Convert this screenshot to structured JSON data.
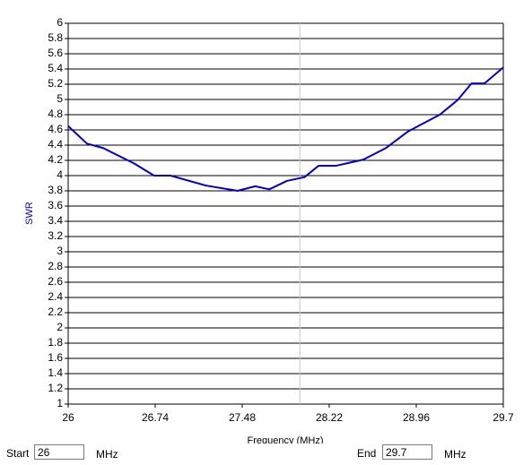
{
  "chart_data": {
    "type": "line",
    "y_label": "SWR",
    "x_label": "Frequency (MHz)",
    "x": [
      26,
      26.16,
      26.3,
      26.56,
      26.73,
      26.87,
      27.17,
      27.44,
      27.59,
      27.71,
      27.86,
      28.01,
      28.13,
      28.28,
      28.51,
      28.7,
      28.89,
      29.16,
      29.31,
      29.43,
      29.54,
      29.7
    ],
    "series": [
      {
        "name": "SWR",
        "color": "#0000cc",
        "values": [
          4.65,
          4.42,
          4.36,
          4.16,
          4.0,
          4.0,
          3.87,
          3.8,
          3.86,
          3.82,
          3.93,
          3.98,
          4.13,
          4.13,
          4.21,
          4.36,
          4.58,
          4.8,
          4.99,
          5.21,
          5.21,
          5.42
        ]
      }
    ],
    "xlim": [
      26,
      29.7
    ],
    "xticks": [
      26,
      26.74,
      27.48,
      28.22,
      28.96,
      29.7
    ],
    "ylim": [
      1,
      6
    ],
    "yticks": [
      1,
      1.2,
      1.4,
      1.6,
      1.8,
      2,
      2.2,
      2.4,
      2.6,
      2.8,
      3,
      3.2,
      3.4,
      3.6,
      3.8,
      4,
      4.2,
      4.4,
      4.6,
      4.8,
      5,
      5.2,
      5.4,
      5.6,
      5.8,
      6
    ],
    "grid": true,
    "cursor_x": 27.97
  },
  "controls": {
    "start_label": "Start",
    "start_value": "26",
    "start_unit": "MHz",
    "end_label": "End",
    "end_value": "29.7",
    "end_unit": "MHz"
  }
}
